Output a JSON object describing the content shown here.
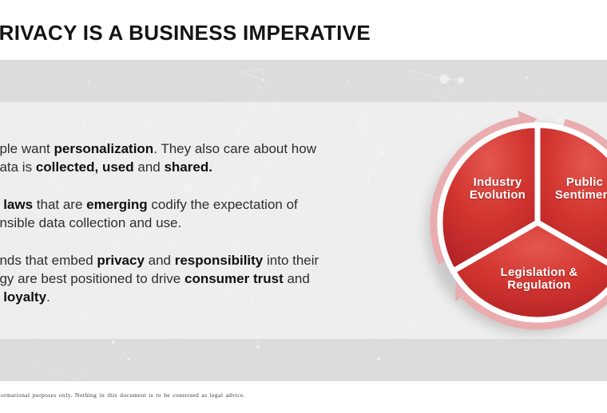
{
  "slide": {
    "title": "PRIVACY IS A BUSINESS IMPERATIVE",
    "footer": "ormational purposes only. Nothing in this document is to be construed as legal advice."
  },
  "body": {
    "p1l1a": "ople want ",
    "p1l1b": "personalization",
    "p1l1c": ". They also care about how",
    "p1l2a": "data is ",
    "p1l2b": "collected, used",
    "p1l2c": " and ",
    "p1l2d": "shared.",
    "p2l1a": "e ",
    "p2l1b": "laws",
    "p2l1c": " that are ",
    "p2l1d": "emerging",
    "p2l1e": " codify the expectation of",
    "p2l2a": "onsible data collection and use.",
    "p3l1a": "ands that embed ",
    "p3l1b": "privacy",
    "p3l1c": " and ",
    "p3l1d": "responsibility",
    "p3l1e": " into their",
    "p3l2a": "egy are best positioned to drive ",
    "p3l2b": "consumer trust",
    "p3l2c": " and",
    "p3l3a": "d ",
    "p3l3b": "loyalty",
    "p3l3c": "."
  },
  "diagram": {
    "type": "cycle",
    "segments": [
      {
        "line1": "Industry",
        "line2": "Evolution"
      },
      {
        "line1": "Public",
        "line2": "Sentiment"
      },
      {
        "line1": "Legislation &",
        "line2": "Regulation"
      }
    ]
  },
  "colors": {
    "band": "#dcdcdc",
    "middle_band": "#efeeee",
    "page": "#ffffff",
    "pattern": "#ffffff",
    "wedge_light": "#e4574f",
    "wedge_mid": "#d23530",
    "wedge_dark": "#aa1d23",
    "ring": "#e9adb0",
    "label_text": "#ffffff",
    "title_text": "#141414"
  }
}
